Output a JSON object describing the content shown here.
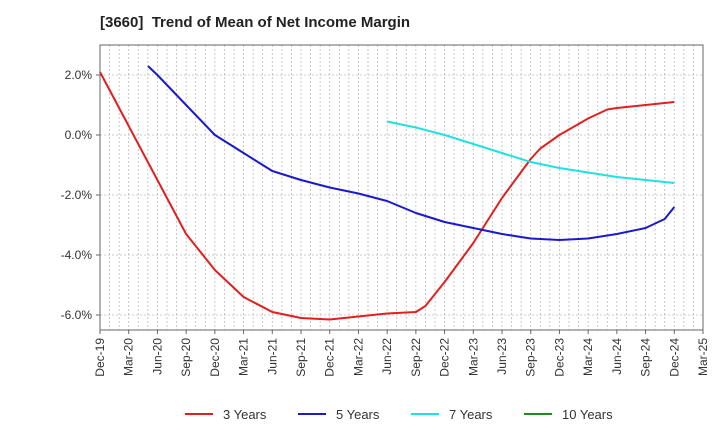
{
  "chart_data": {
    "type": "line",
    "title": "[3660]  Trend of Mean of Net Income Margin",
    "xlabel": "",
    "ylabel": "",
    "x_ticks": [
      "Dec-19",
      "Mar-20",
      "Jun-20",
      "Sep-20",
      "Dec-20",
      "Mar-21",
      "Jun-21",
      "Sep-21",
      "Dec-21",
      "Mar-22",
      "Jun-22",
      "Sep-22",
      "Dec-22",
      "Mar-23",
      "Jun-23",
      "Sep-23",
      "Dec-23",
      "Mar-24",
      "Jun-24",
      "Sep-24",
      "Dec-24",
      "Mar-25"
    ],
    "y_ticks": [
      2.0,
      0.0,
      -2.0,
      -4.0,
      -6.0
    ],
    "y_tick_labels": [
      "2.0%",
      "0.0%",
      "-2.0%",
      "-4.0%",
      "-6.0%"
    ],
    "ylim": [
      -6.5,
      3.0
    ],
    "grid": true,
    "legend_position": "bottom",
    "series": [
      {
        "name": "3 Years",
        "color": "#e02020",
        "x": [
          "Dec-19",
          "Mar-20",
          "Jun-20",
          "Sep-20",
          "Dec-20",
          "Mar-21",
          "Jun-21",
          "Sep-21",
          "Dec-21",
          "Mar-22",
          "Jun-22",
          "Sep-22",
          "Oct-22",
          "Dec-22",
          "Mar-23",
          "Jun-23",
          "Sep-23",
          "Oct-23",
          "Dec-23",
          "Mar-24",
          "May-24",
          "Jun-24",
          "Sep-24",
          "Dec-24"
        ],
        "values": [
          2.1,
          0.3,
          -1.5,
          -3.3,
          -4.5,
          -5.4,
          -5.9,
          -6.1,
          -6.15,
          -6.05,
          -5.95,
          -5.9,
          -5.7,
          -4.9,
          -3.6,
          -2.1,
          -0.8,
          -0.45,
          0.0,
          0.55,
          0.85,
          0.9,
          1.0,
          1.1
        ]
      },
      {
        "name": "5 Years",
        "color": "#1a1acc",
        "x": [
          "May-20",
          "Jun-20",
          "Sep-20",
          "Dec-20",
          "Mar-21",
          "Jun-21",
          "Sep-21",
          "Dec-21",
          "Mar-22",
          "Jun-22",
          "Sep-22",
          "Dec-22",
          "Mar-23",
          "Jun-23",
          "Sep-23",
          "Dec-23",
          "Mar-24",
          "Jun-24",
          "Sep-24",
          "Nov-24",
          "Dec-24"
        ],
        "values": [
          2.3,
          2.0,
          1.0,
          0.0,
          -0.6,
          -1.2,
          -1.5,
          -1.75,
          -1.95,
          -2.2,
          -2.6,
          -2.9,
          -3.1,
          -3.3,
          -3.45,
          -3.5,
          -3.45,
          -3.3,
          -3.1,
          -2.8,
          -2.4
        ]
      },
      {
        "name": "7 Years",
        "color": "#22e0e0",
        "x": [
          "Jun-22",
          "Sep-22",
          "Dec-22",
          "Mar-23",
          "Jun-23",
          "Sep-23",
          "Dec-23",
          "Mar-24",
          "Jun-24",
          "Sep-24",
          "Dec-24"
        ],
        "values": [
          0.45,
          0.25,
          0.0,
          -0.3,
          -0.6,
          -0.9,
          -1.1,
          -1.25,
          -1.4,
          -1.5,
          -1.6
        ]
      },
      {
        "name": "10 Years",
        "color": "#1f8a1f",
        "x": [],
        "values": []
      }
    ]
  }
}
